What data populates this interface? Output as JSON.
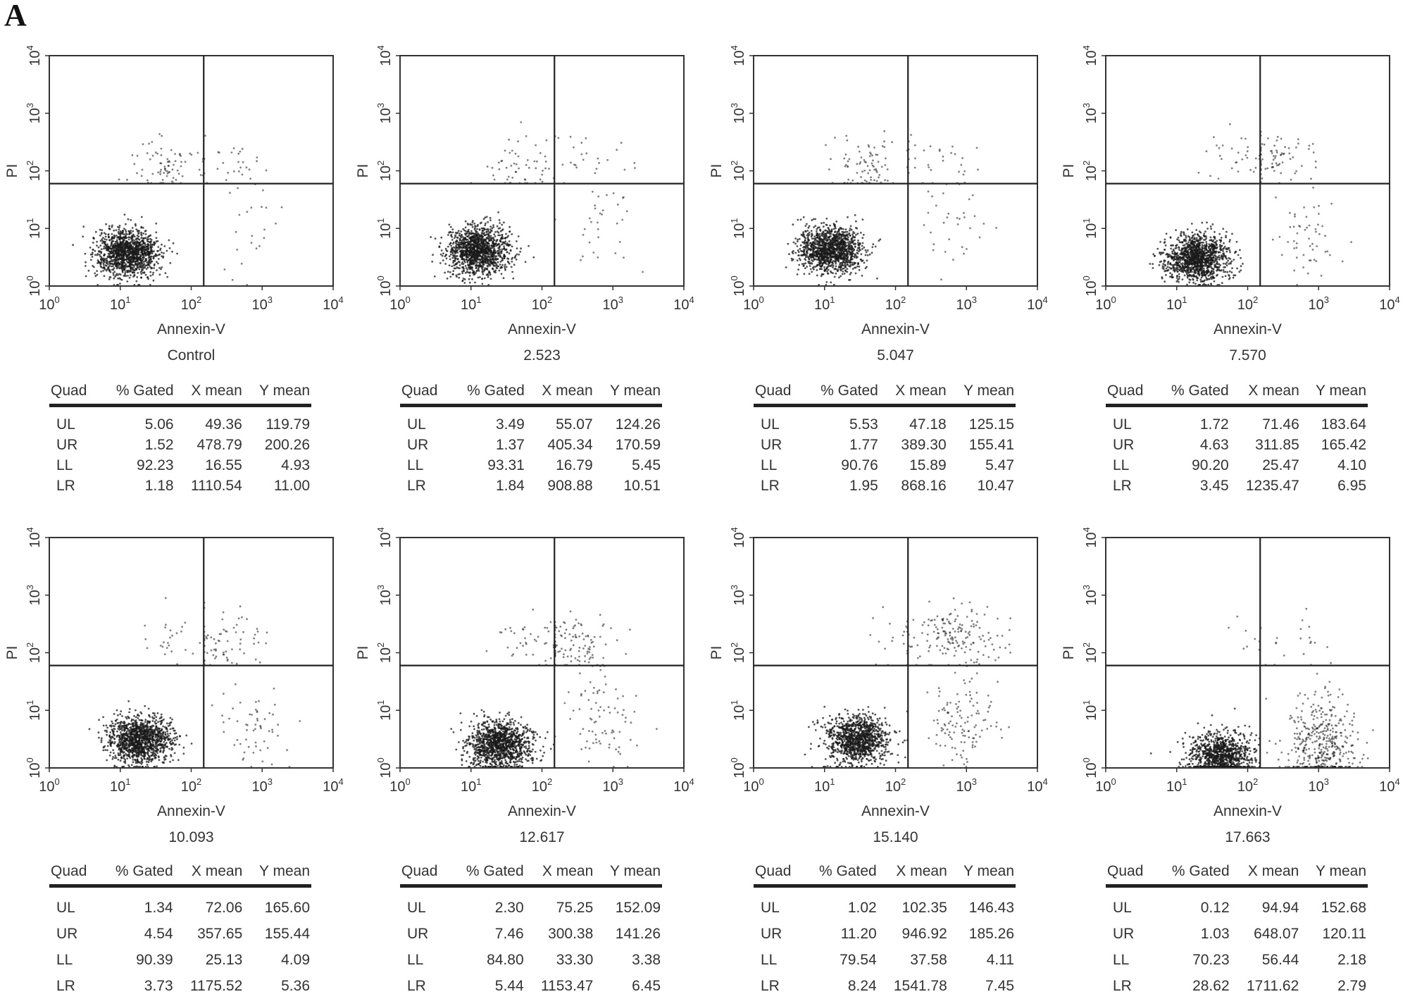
{
  "figure_label": "A",
  "axes": {
    "xlabel": "Annexin-V",
    "ylabel": "PI",
    "scale": "log",
    "xlim": [
      1,
      10000
    ],
    "ylim": [
      1,
      10000
    ],
    "tick_base": "10",
    "tick_exponents": [
      "0",
      "1",
      "2",
      "3",
      "4"
    ],
    "gate": {
      "x": 150,
      "y": 60
    }
  },
  "table_headers": [
    "Quad",
    "% Gated",
    "X mean",
    "Y mean"
  ],
  "chart_data": [
    {
      "type": "scatter",
      "sample": "Control",
      "rows": [
        [
          "UL",
          "5.06",
          "49.36",
          "119.79"
        ],
        [
          "UR",
          "1.52",
          "478.79",
          "200.26"
        ],
        [
          "LL",
          "92.23",
          "16.55",
          "4.93"
        ],
        [
          "LR",
          "1.18",
          "1110.54",
          "11.00"
        ]
      ]
    },
    {
      "type": "scatter",
      "sample": "2.523",
      "rows": [
        [
          "UL",
          "3.49",
          "55.07",
          "124.26"
        ],
        [
          "UR",
          "1.37",
          "405.34",
          "170.59"
        ],
        [
          "LL",
          "93.31",
          "16.79",
          "5.45"
        ],
        [
          "LR",
          "1.84",
          "908.88",
          "10.51"
        ]
      ]
    },
    {
      "type": "scatter",
      "sample": "5.047",
      "rows": [
        [
          "UL",
          "5.53",
          "47.18",
          "125.15"
        ],
        [
          "UR",
          "1.77",
          "389.30",
          "155.41"
        ],
        [
          "LL",
          "90.76",
          "15.89",
          "5.47"
        ],
        [
          "LR",
          "1.95",
          "868.16",
          "10.47"
        ]
      ]
    },
    {
      "type": "scatter",
      "sample": "7.570",
      "rows": [
        [
          "UL",
          "1.72",
          "71.46",
          "183.64"
        ],
        [
          "UR",
          "4.63",
          "311.85",
          "165.42"
        ],
        [
          "LL",
          "90.20",
          "25.47",
          "4.10"
        ],
        [
          "LR",
          "3.45",
          "1235.47",
          "6.95"
        ]
      ]
    },
    {
      "type": "scatter",
      "sample": "10.093",
      "rows": [
        [
          "UL",
          "1.34",
          "72.06",
          "165.60"
        ],
        [
          "UR",
          "4.54",
          "357.65",
          "155.44"
        ],
        [
          "LL",
          "90.39",
          "25.13",
          "4.09"
        ],
        [
          "LR",
          "3.73",
          "1175.52",
          "5.36"
        ]
      ]
    },
    {
      "type": "scatter",
      "sample": "12.617",
      "rows": [
        [
          "UL",
          "2.30",
          "75.25",
          "152.09"
        ],
        [
          "UR",
          "7.46",
          "300.38",
          "141.26"
        ],
        [
          "LL",
          "84.80",
          "33.30",
          "3.38"
        ],
        [
          "LR",
          "5.44",
          "1153.47",
          "6.45"
        ]
      ]
    },
    {
      "type": "scatter",
      "sample": "15.140",
      "rows": [
        [
          "UL",
          "1.02",
          "102.35",
          "146.43"
        ],
        [
          "UR",
          "11.20",
          "946.92",
          "185.26"
        ],
        [
          "LL",
          "79.54",
          "37.58",
          "4.11"
        ],
        [
          "LR",
          "8.24",
          "1541.78",
          "7.45"
        ]
      ]
    },
    {
      "type": "scatter",
      "sample": "17.663",
      "rows": [
        [
          "UL",
          "0.12",
          "94.94",
          "152.68"
        ],
        [
          "UR",
          "1.03",
          "648.07",
          "120.11"
        ],
        [
          "LL",
          "70.23",
          "56.44",
          "2.18"
        ],
        [
          "LR",
          "28.62",
          "1711.62",
          "2.79"
        ]
      ]
    }
  ]
}
